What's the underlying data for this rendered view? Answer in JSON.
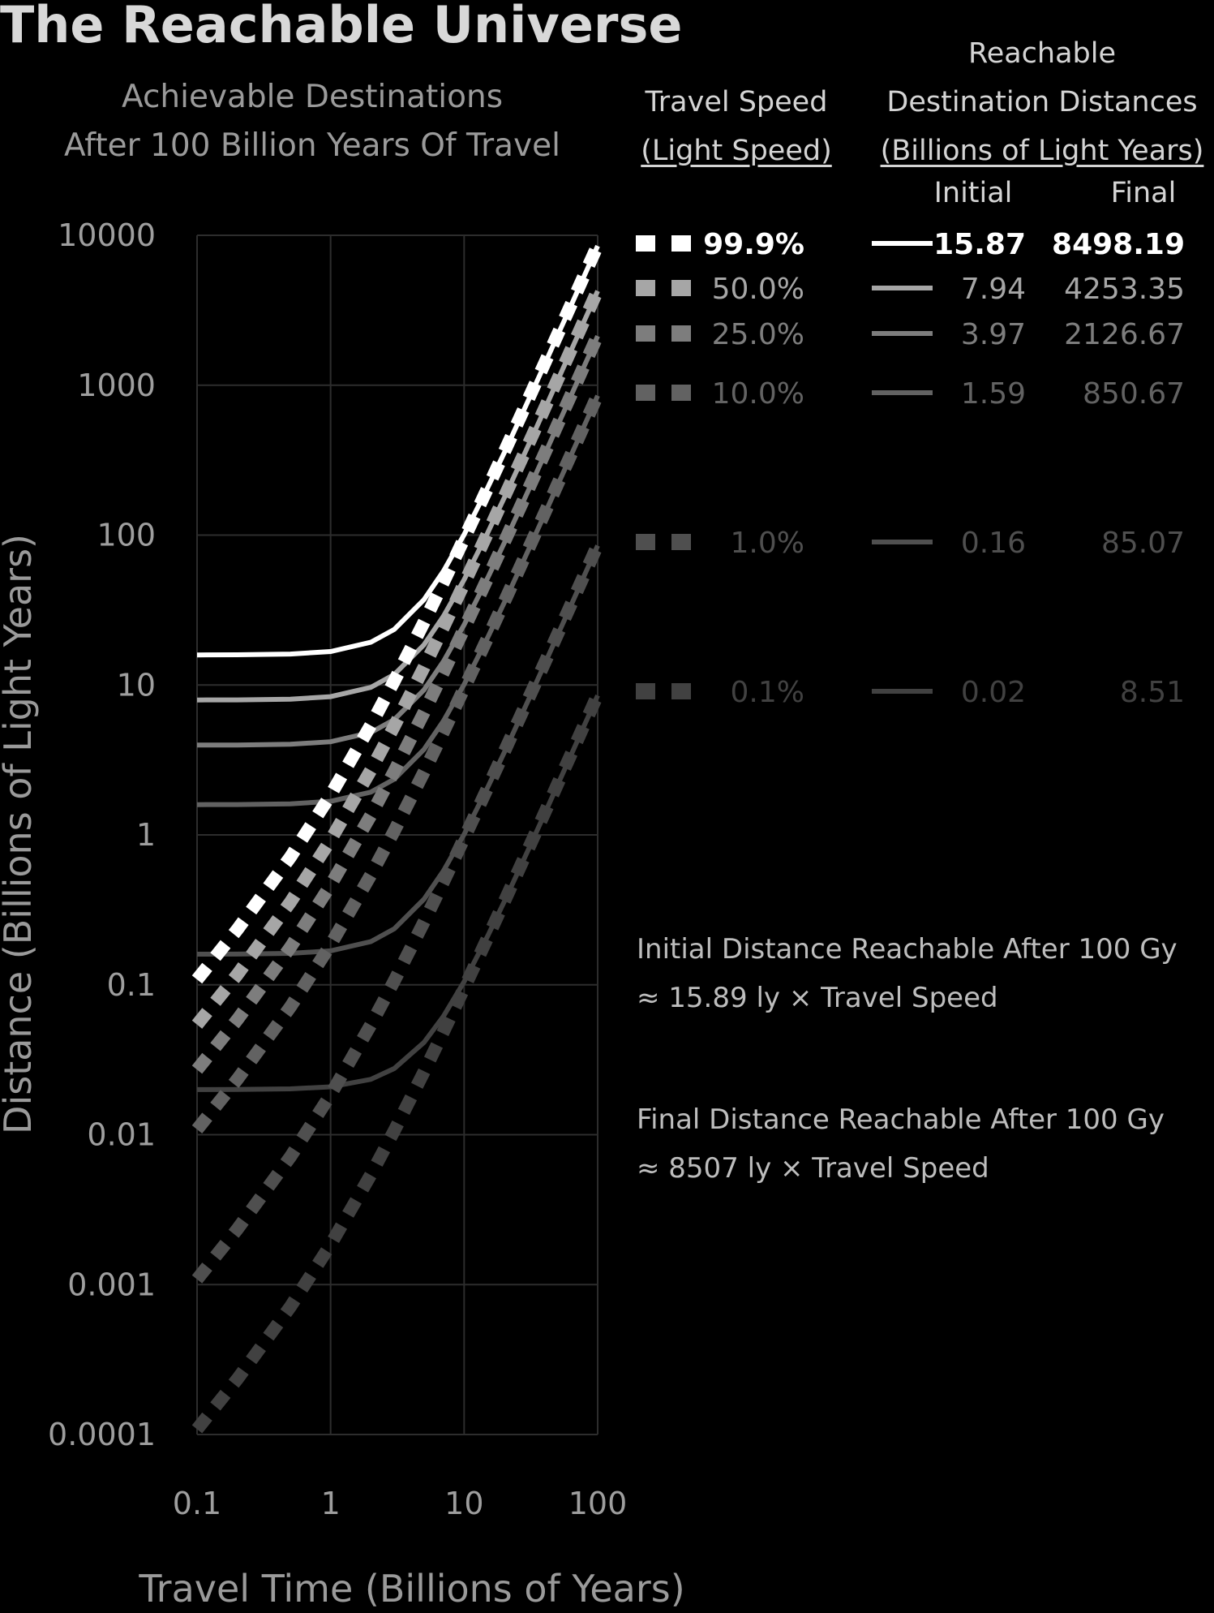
{
  "chart_data": {
    "type": "line",
    "title": "The Reachable Universe",
    "subtitle": [
      "Achievable Destinations",
      "After 100 Billion Years Of Travel"
    ],
    "xlabel": "Travel Time (Billions of Years)",
    "ylabel": "Distance (Billions of Light Years)",
    "xscale": "log",
    "yscale": "log",
    "xlim": [
      0.1,
      100
    ],
    "ylim": [
      0.0001,
      10000
    ],
    "x_ticks": [
      "0.1",
      "1",
      "10",
      "100"
    ],
    "y_ticks": [
      "10000",
      "1000",
      "100",
      "10",
      "1",
      "0.1",
      "0.01",
      "0.001",
      "0.0001"
    ],
    "grid": true,
    "legend": {
      "placement": "right",
      "speed_header": [
        "Travel Speed",
        "(Light Speed)"
      ],
      "distance_header": [
        "Reachable",
        "Destination Distances",
        "(Billions of Light Years)"
      ],
      "initial_label": "Initial",
      "final_label": "Final"
    },
    "series": [
      {
        "speed_label": "99.9%",
        "speed": 0.999,
        "initial": "15.87",
        "final": "8498.19",
        "color": "#ffffff"
      },
      {
        "speed_label": "50.0%",
        "speed": 0.5,
        "initial": "7.94",
        "final": "4253.35",
        "color": "#a6a6a6"
      },
      {
        "speed_label": "25.0%",
        "speed": 0.25,
        "initial": "3.97",
        "final": "2126.67",
        "color": "#7d7d7d"
      },
      {
        "speed_label": "10.0%",
        "speed": 0.1,
        "initial": "1.59",
        "final": "850.67",
        "color": "#626262"
      },
      {
        "speed_label": "1.0%",
        "speed": 0.01,
        "initial": "0.16",
        "final": "85.07",
        "color": "#4f4f4f"
      },
      {
        "speed_label": "0.1%",
        "speed": 0.001,
        "initial": "0.02",
        "final": "8.51",
        "color": "#414141"
      }
    ],
    "curve_x": [
      0.1,
      0.2,
      0.5,
      1,
      2,
      3,
      5,
      7,
      10,
      15,
      20,
      30,
      40,
      50,
      60,
      70,
      80,
      90,
      100
    ],
    "annotations": [
      [
        "Initial Distance Reachable After 100 Gy",
        "≈ 15.89 ly × Travel Speed"
      ],
      [
        "Final Distance Reachable After 100 Gy",
        "≈ 8507 ly × Travel Speed"
      ]
    ]
  }
}
